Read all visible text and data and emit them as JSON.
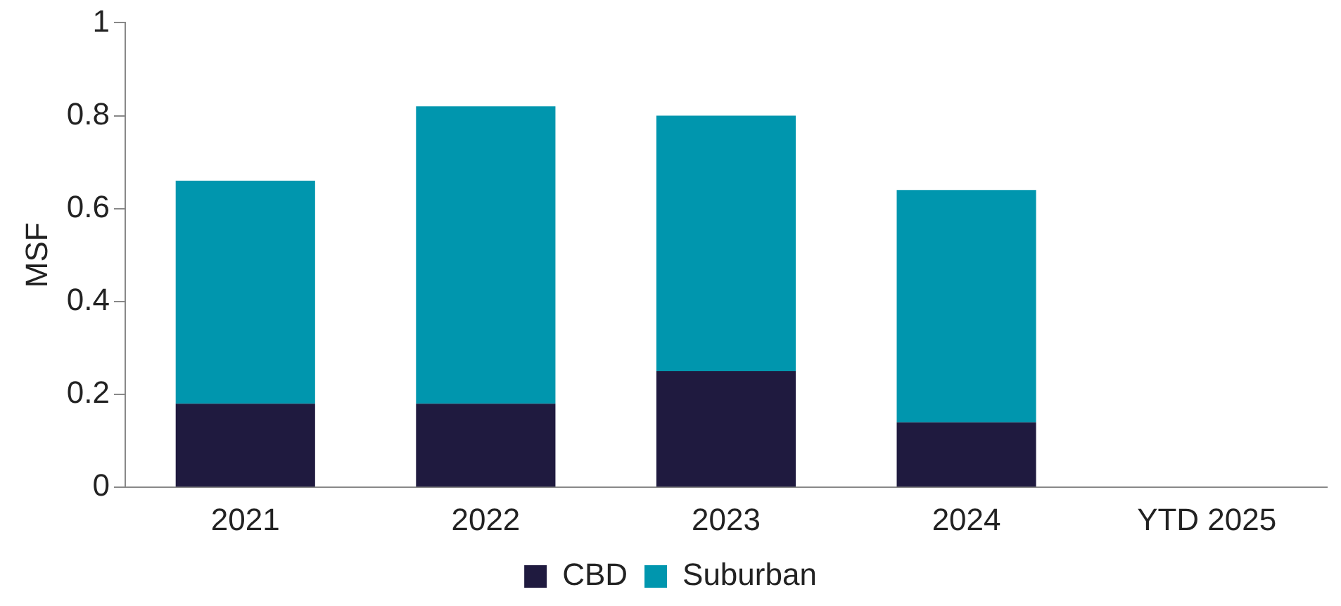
{
  "chart_data": {
    "type": "bar",
    "ylabel": "MSF",
    "categories": [
      "2021",
      "2022",
      "2023",
      "2024",
      "YTD 2025"
    ],
    "stacked": true,
    "series": [
      {
        "name": "CBD",
        "color": "#1f1a3f",
        "values": [
          0.18,
          0.18,
          0.25,
          0.14,
          null
        ]
      },
      {
        "name": "Suburban",
        "color": "#0096ae",
        "values": [
          0.48,
          0.64,
          0.55,
          0.5,
          null
        ]
      }
    ],
    "ylim": [
      0,
      1
    ],
    "yticks": [
      0,
      0.2,
      0.4,
      0.6,
      0.8,
      1
    ],
    "grid": false,
    "legend": "bottom"
  }
}
